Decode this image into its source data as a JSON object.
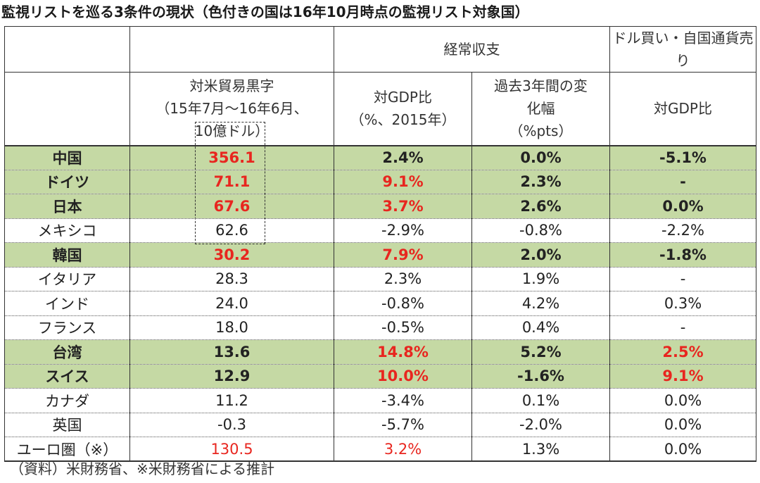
{
  "title": "監視リストを巡る3条件の現状（色付きの国は16年10月時点の監視リスト対象国）",
  "headers": {
    "current_account": "経常収支",
    "fx_intervention": "ドル買い・自国通貨売り",
    "trade_surplus_lines": [
      "対米貿易黒字",
      "（15年7月〜16年6月、",
      "10億ドル）"
    ],
    "ca_gdp_lines": [
      "対GDP比",
      "（%、2015年）"
    ],
    "ca_change_lines": [
      "過去3年間の変",
      "化幅",
      "（%pts）"
    ],
    "fx_gdp": "対GDP比"
  },
  "colors": {
    "highlight": "#c5d9a4",
    "red": "#e8261f"
  },
  "rows": [
    {
      "country": "中国",
      "trade": "356.1",
      "ca_gdp": "2.4%",
      "ca_change": "0.0%",
      "fx": "-5.1%",
      "hl": true,
      "red": [
        true,
        false,
        false,
        false
      ]
    },
    {
      "country": "ドイツ",
      "trade": "71.1",
      "ca_gdp": "9.1%",
      "ca_change": "2.3%",
      "fx": "-",
      "hl": true,
      "red": [
        true,
        true,
        false,
        false
      ]
    },
    {
      "country": "日本",
      "trade": "67.6",
      "ca_gdp": "3.7%",
      "ca_change": "2.6%",
      "fx": "0.0%",
      "hl": true,
      "red": [
        true,
        true,
        false,
        false
      ]
    },
    {
      "country": "メキシコ",
      "trade": "62.6",
      "ca_gdp": "-2.9%",
      "ca_change": "-0.8%",
      "fx": "-2.2%",
      "hl": false,
      "red": [
        false,
        false,
        false,
        false
      ]
    },
    {
      "country": "韓国",
      "trade": "30.2",
      "ca_gdp": "7.9%",
      "ca_change": "2.0%",
      "fx": "-1.8%",
      "hl": true,
      "red": [
        true,
        true,
        false,
        false
      ]
    },
    {
      "country": "イタリア",
      "trade": "28.3",
      "ca_gdp": "2.3%",
      "ca_change": "1.9%",
      "fx": "-",
      "hl": false,
      "red": [
        false,
        false,
        false,
        false
      ]
    },
    {
      "country": "インド",
      "trade": "24.0",
      "ca_gdp": "-0.8%",
      "ca_change": "4.2%",
      "fx": "0.3%",
      "hl": false,
      "red": [
        false,
        false,
        false,
        false
      ]
    },
    {
      "country": "フランス",
      "trade": "18.0",
      "ca_gdp": "-0.5%",
      "ca_change": "0.4%",
      "fx": "-",
      "hl": false,
      "red": [
        false,
        false,
        false,
        false
      ]
    },
    {
      "country": "台湾",
      "trade": "13.6",
      "ca_gdp": "14.8%",
      "ca_change": "5.2%",
      "fx": "2.5%",
      "hl": true,
      "red": [
        false,
        true,
        false,
        true
      ]
    },
    {
      "country": "スイス",
      "trade": "12.9",
      "ca_gdp": "10.0%",
      "ca_change": "-1.6%",
      "fx": "9.1%",
      "hl": true,
      "red": [
        false,
        true,
        false,
        true
      ]
    },
    {
      "country": "カナダ",
      "trade": "11.2",
      "ca_gdp": "-3.4%",
      "ca_change": "0.1%",
      "fx": "0.0%",
      "hl": false,
      "red": [
        false,
        false,
        false,
        false
      ]
    },
    {
      "country": "英国",
      "trade": "-0.3",
      "ca_gdp": "-5.7%",
      "ca_change": "-2.0%",
      "fx": "0.0%",
      "hl": false,
      "red": [
        false,
        false,
        false,
        false
      ]
    },
    {
      "country": "ユーロ圏（※）",
      "trade": "130.5",
      "ca_gdp": "3.2%",
      "ca_change": "1.3%",
      "fx": "0.0%",
      "hl": false,
      "red": [
        true,
        true,
        false,
        false
      ]
    }
  ],
  "source": "（資料）米財務省、※米財務省による推計"
}
